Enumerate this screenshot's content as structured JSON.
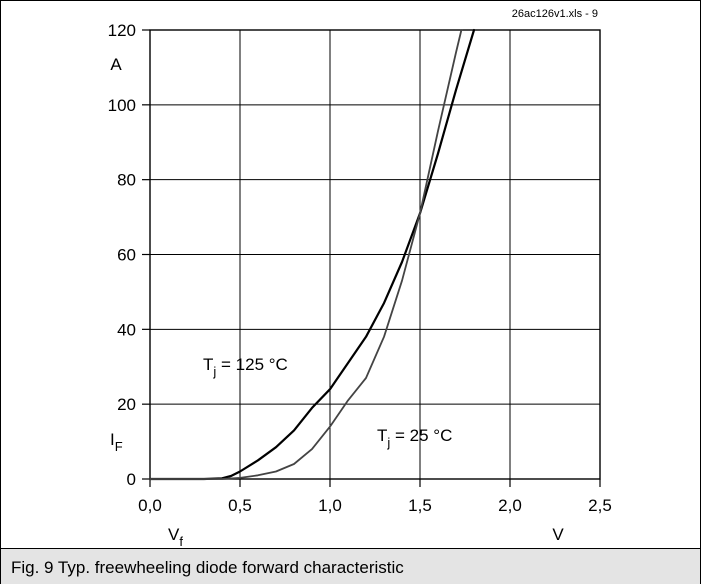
{
  "file_label": "26ac126v1.xls - 9",
  "caption": "Fig. 9 Typ. freewheeling diode forward characteristic",
  "chart_data": {
    "type": "line",
    "xlim": [
      0.0,
      2.5
    ],
    "ylim": [
      0,
      120
    ],
    "x_ticks": [
      "0,0",
      "0,5",
      "1,0",
      "1,5",
      "2,0",
      "2,5"
    ],
    "y_ticks": [
      "0",
      "20",
      "40",
      "60",
      "80",
      "100",
      "120"
    ],
    "x_tick_values": [
      0.0,
      0.5,
      1.0,
      1.5,
      2.0,
      2.5
    ],
    "y_tick_values": [
      0,
      20,
      40,
      60,
      80,
      100,
      120
    ],
    "grid": true,
    "x_unit": "V",
    "y_unit": "A",
    "xlabel": {
      "main": "V",
      "sub": "f"
    },
    "ylabel": {
      "main": "I",
      "sub": "F"
    },
    "series": [
      {
        "name": "Tj = 125 °C",
        "label": {
          "main": "T",
          "sub": "j",
          "rest": " = 125 °C"
        },
        "color": "#000000",
        "x": [
          0.0,
          0.3,
          0.4,
          0.45,
          0.5,
          0.6,
          0.7,
          0.8,
          0.9,
          1.0,
          1.1,
          1.2,
          1.3,
          1.4,
          1.5,
          1.6,
          1.7,
          1.8
        ],
        "y": [
          0,
          0,
          0.2,
          0.8,
          2,
          5,
          8.5,
          13,
          19,
          24,
          31,
          38,
          47,
          58,
          71,
          87,
          104,
          120
        ]
      },
      {
        "name": "Tj = 25 °C",
        "label": {
          "main": "T",
          "sub": "j",
          "rest": " = 25 °C"
        },
        "color": "#444444",
        "x": [
          0.0,
          0.4,
          0.5,
          0.6,
          0.7,
          0.8,
          0.9,
          1.0,
          1.1,
          1.2,
          1.3,
          1.4,
          1.5,
          1.6,
          1.7,
          1.73
        ],
        "y": [
          0,
          0,
          0.3,
          1,
          2,
          4,
          8,
          14,
          21,
          27,
          38,
          53,
          71,
          93,
          114,
          120
        ]
      }
    ]
  }
}
